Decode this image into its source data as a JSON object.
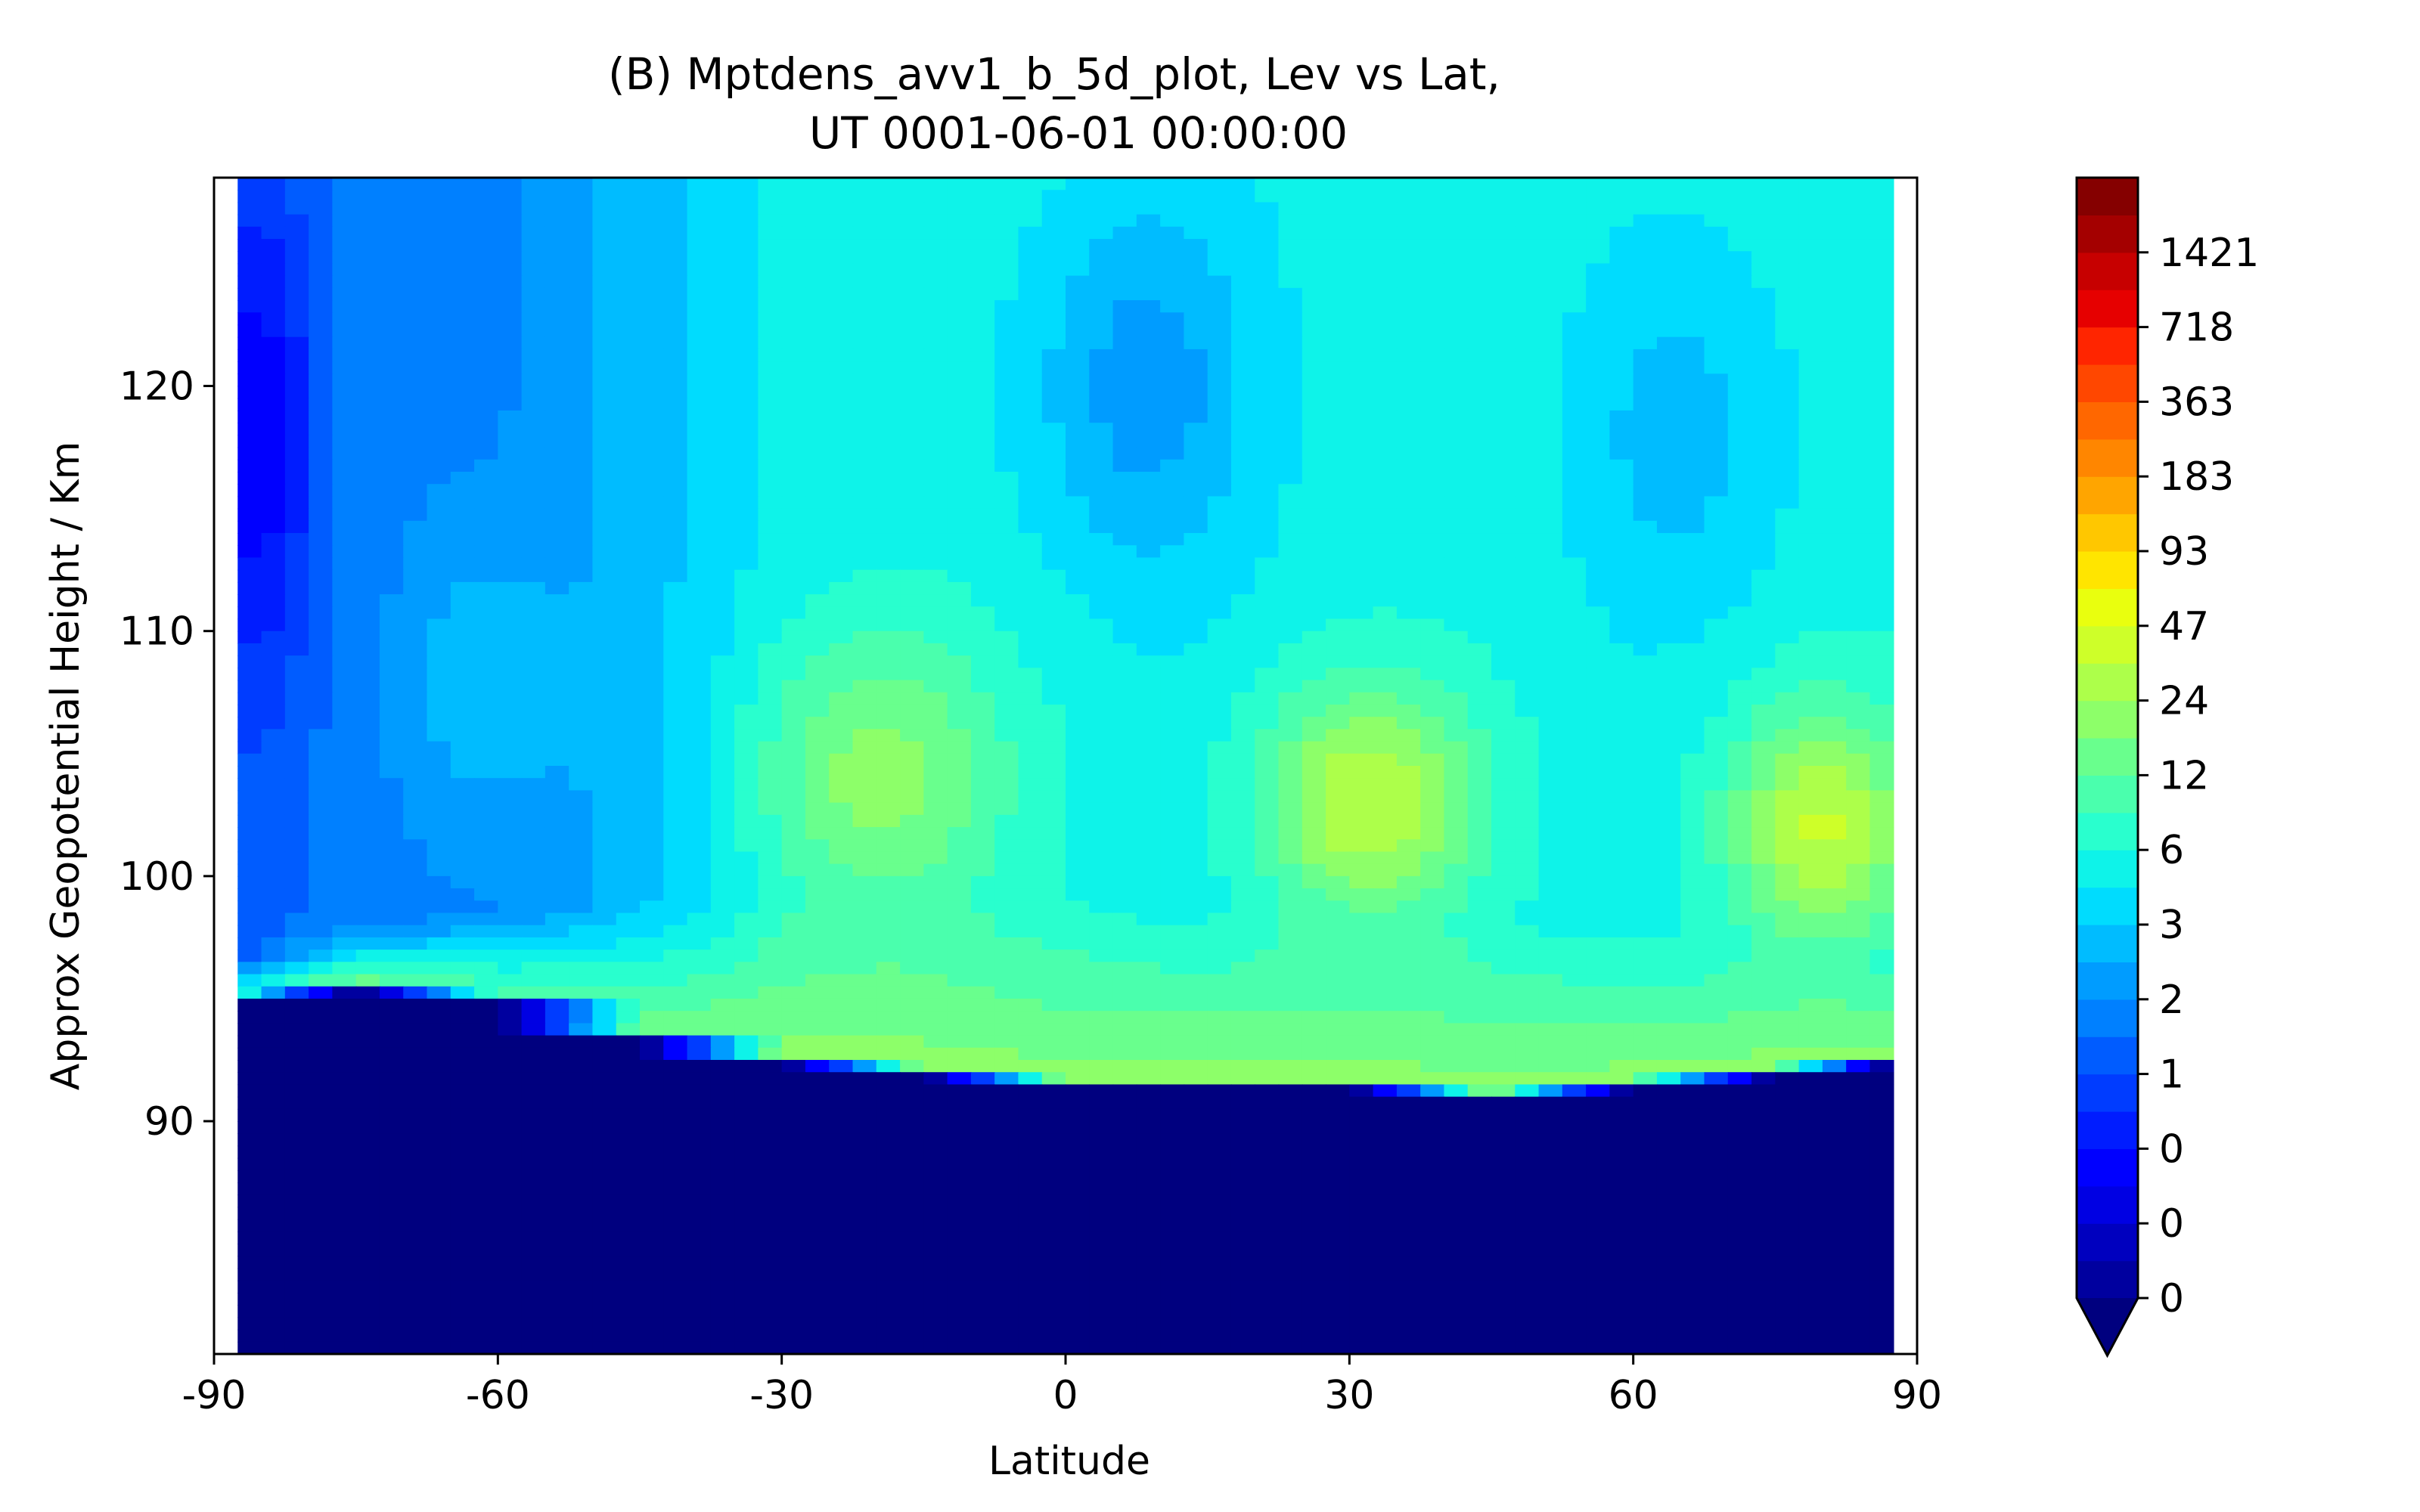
{
  "chart_data": {
    "type": "heatmap",
    "title_line1": "(B) Mptdens_avv1_b_5d_plot, Lev vs Lat,",
    "title_line2": "UT 0001-06-01 00:00:00",
    "xlabel": "Latitude",
    "ylabel": "Approx Geopotential Height / Km",
    "xlim": [
      -90,
      90
    ],
    "ylim": [
      80.5,
      128.5
    ],
    "x_ticks": [
      -90,
      -60,
      -30,
      0,
      30,
      60,
      90
    ],
    "x_tick_labels": [
      "-90",
      "-60",
      "-30",
      "0",
      "30",
      "60",
      "90"
    ],
    "y_ticks": [
      90,
      100,
      110,
      120
    ],
    "y_tick_labels": [
      "90",
      "100",
      "110",
      "120"
    ],
    "data_xlim": [
      -87.5,
      87.5
    ],
    "colorbar": {
      "extend": "min",
      "tick_labels": [
        "0",
        "0",
        "0",
        "1",
        "2",
        "3",
        "6",
        "12",
        "24",
        "47",
        "93",
        "183",
        "363",
        "718",
        "1421"
      ],
      "colors": [
        "#00007f",
        "#00009f",
        "#0000bf",
        "#0000e3",
        "#0000ff",
        "#001cff",
        "#003cff",
        "#005cff",
        "#0080ff",
        "#009cff",
        "#00bcff",
        "#00dcfe",
        "#0ef3e9",
        "#29ffce",
        "#4affad",
        "#69ff8d",
        "#8dff69",
        "#adff4a",
        "#ceff29",
        "#e9ff0e",
        "#ffe500",
        "#ffc700",
        "#ffa500",
        "#ff8600",
        "#ff6700",
        "#ff4700",
        "#ff2500",
        "#e60000",
        "#c70000",
        "#a40000",
        "#850000"
      ]
    },
    "color_scale_max_level": 30,
    "vertical_profiles": [
      {
        "lat": -87.5,
        "top": 7.5,
        "levels": [
          [
            95,
            15
          ],
          [
            96.5,
            7.5
          ]
        ]
      },
      {
        "lat": -75,
        "top": 8.6,
        "levels": [
          [
            95.5,
            16
          ],
          [
            98,
            8.6
          ]
        ]
      },
      {
        "lat": -60,
        "top": 8.8,
        "levels": [
          [
            95,
            15.2
          ],
          [
            98.5,
            8.8
          ]
        ]
      },
      {
        "lat": -45,
        "top": 10.5,
        "levels": [
          [
            93.5,
            16
          ],
          [
            99,
            10.5
          ]
        ]
      },
      {
        "lat": -30,
        "top": 12.2,
        "levels": [
          [
            92.5,
            16.5
          ],
          [
            99.5,
            12.2
          ]
        ]
      },
      {
        "lat": -15,
        "top": 12.6,
        "levels": [
          [
            92,
            16.5
          ],
          [
            99.5,
            12.6
          ]
        ]
      },
      {
        "lat": 0,
        "top": 12.6,
        "levels": [
          [
            91.5,
            16.5
          ],
          [
            99.5,
            12.6
          ]
        ]
      },
      {
        "lat": 15,
        "top": 12.3,
        "levels": [
          [
            91.5,
            16.5
          ],
          [
            99,
            12.3
          ]
        ]
      },
      {
        "lat": 30,
        "top": 12.5,
        "levels": [
          [
            91.5,
            16.5
          ],
          [
            98.5,
            12.5
          ]
        ]
      },
      {
        "lat": 45,
        "top": 12.6,
        "levels": [
          [
            91,
            16.5
          ],
          [
            98.5,
            12.6
          ]
        ]
      },
      {
        "lat": 60,
        "top": 12.5,
        "levels": [
          [
            91.5,
            16.5
          ],
          [
            98,
            12.5
          ]
        ]
      },
      {
        "lat": 75,
        "top": 12.7,
        "levels": [
          [
            92,
            16.5
          ],
          [
            97,
            12.7
          ]
        ]
      },
      {
        "lat": 87.5,
        "top": 12.7,
        "levels": [
          [
            92.5,
            16.5
          ],
          [
            96.5,
            12.7
          ]
        ]
      }
    ],
    "anomalies": [
      {
        "lat": -85,
        "height": 118,
        "lat_width": 6,
        "height_width": 10,
        "level_change": -3.5
      },
      {
        "lat": -62,
        "height": 108,
        "lat_width": 8,
        "height_width": 6,
        "level_change": 2
      },
      {
        "lat": -20,
        "height": 104,
        "lat_width": 14,
        "height_width": 6,
        "level_change": 4
      },
      {
        "lat": 32,
        "height": 103,
        "lat_width": 12,
        "height_width": 5,
        "level_change": 5.5
      },
      {
        "lat": 80,
        "height": 102,
        "lat_width": 10,
        "height_width": 5,
        "level_change": 5.5
      },
      {
        "lat": 8,
        "height": 120,
        "lat_width": 12,
        "height_width": 8,
        "level_change": -3
      },
      {
        "lat": 65,
        "height": 118,
        "lat_width": 12,
        "height_width": 8,
        "level_change": -2
      }
    ]
  }
}
